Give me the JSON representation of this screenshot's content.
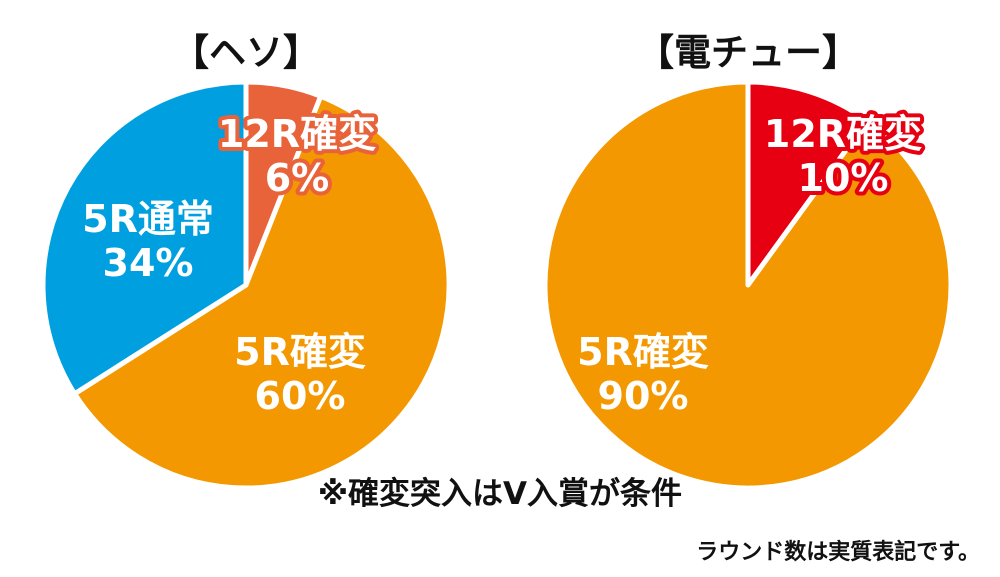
{
  "footnote": "※確変突入はV入賞が条件",
  "source_note": "ラウンド数は実質表記です。",
  "chart_data": [
    {
      "type": "pie",
      "title": "【ヘソ】",
      "slices": [
        {
          "label": "12R確変",
          "value": 6,
          "value_text": "6%",
          "color": "#E8623A"
        },
        {
          "label": "5R確変",
          "value": 60,
          "value_text": "60%",
          "color": "#F39800"
        },
        {
          "label": "5R通常",
          "value": 34,
          "value_text": "34%",
          "color": "#00A0E0"
        }
      ]
    },
    {
      "type": "pie",
      "title": "【電チュー】",
      "slices": [
        {
          "label": "12R確変",
          "value": 10,
          "value_text": "10%",
          "color": "#E60012"
        },
        {
          "label": "5R確変",
          "value": 90,
          "value_text": "90%",
          "color": "#F39800"
        }
      ]
    }
  ]
}
